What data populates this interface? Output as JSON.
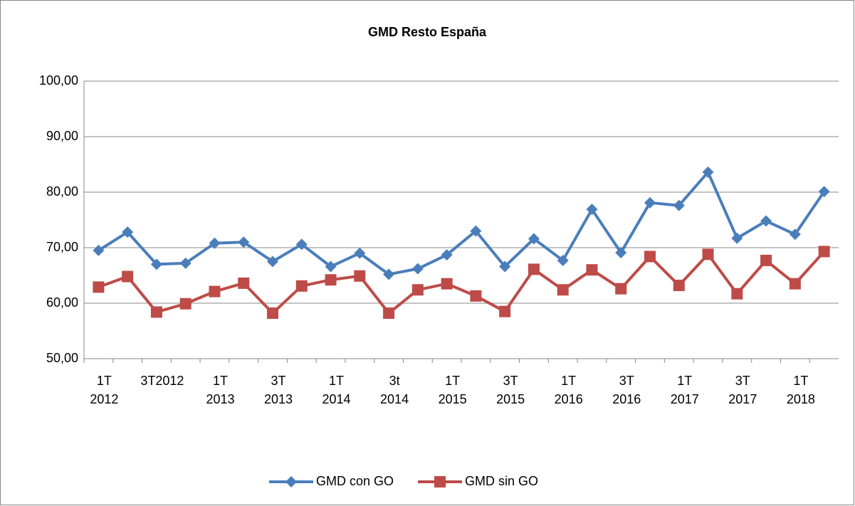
{
  "chart_data": {
    "type": "line",
    "title": "GMD Resto España",
    "categories": [
      "1T\n2012",
      null,
      "3T2012",
      null,
      "1T\n2013",
      null,
      "3T\n2013",
      null,
      "1T\n2014",
      null,
      "3t\n2014",
      null,
      "1T\n2015",
      null,
      "3T\n2015",
      null,
      "1T\n2016",
      null,
      "3T\n2016",
      null,
      "1T\n2017",
      null,
      "3T\n2017",
      null,
      "1T\n2018",
      null
    ],
    "series": [
      {
        "name": "GMD con GO",
        "color": "#4a7ebb",
        "marker": "diamond",
        "values": [
          69.5,
          72.8,
          67.0,
          67.2,
          70.8,
          71.0,
          67.5,
          70.6,
          66.6,
          69.0,
          65.2,
          66.2,
          68.7,
          73.0,
          66.6,
          71.6,
          67.7,
          76.9,
          69.1,
          78.1,
          77.6,
          83.6,
          71.7,
          74.8,
          72.4,
          80.1
        ]
      },
      {
        "name": "GMD sin GO",
        "color": "#be4b48",
        "marker": "square",
        "values": [
          62.9,
          64.8,
          58.4,
          59.9,
          62.1,
          63.6,
          58.2,
          63.1,
          64.2,
          64.9,
          58.2,
          62.4,
          63.5,
          61.3,
          58.5,
          66.1,
          62.4,
          66.0,
          62.6,
          68.4,
          63.2,
          68.8,
          61.7,
          67.7,
          63.5,
          69.3
        ]
      }
    ],
    "ylim": [
      50,
      100
    ],
    "yticks": [
      {
        "value": 50,
        "label": "50,00"
      },
      {
        "value": 60,
        "label": "60,00"
      },
      {
        "value": 70,
        "label": "70,00"
      },
      {
        "value": 80,
        "label": "80,00"
      },
      {
        "value": 90,
        "label": "90,00"
      },
      {
        "value": 100,
        "label": "100,00"
      }
    ],
    "grid": true,
    "legend": "bottom"
  }
}
